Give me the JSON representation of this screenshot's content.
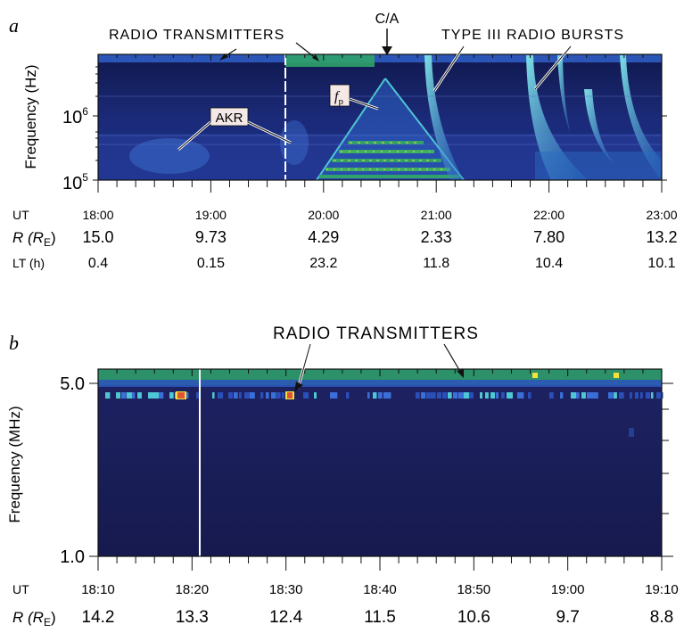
{
  "chart_data": [
    {
      "panel": "a",
      "type": "heatmap",
      "ylabel": "Frequency (Hz)",
      "yscale": "log",
      "ylim": [
        100000,
        5000000
      ],
      "yticks": [
        {
          "value": 100000,
          "base": "10",
          "exp": "5"
        },
        {
          "value": 1000000,
          "base": "10",
          "exp": "6"
        }
      ],
      "xlim": [
        "18:00",
        "23:00"
      ],
      "annotations": {
        "radio_transmitters": "RADIO TRANSMITTERS",
        "ca": "C/A",
        "type3": "TYPE  III  RADIO  BURSTS",
        "akr": "AKR",
        "fp_main": "f",
        "fp_sub": "p"
      },
      "rows": {
        "ut": {
          "label": "UT",
          "values": [
            "18:00",
            "19:00",
            "20:00",
            "21:00",
            "22:00",
            "23:00"
          ]
        },
        "r": {
          "label": "R (R",
          "label_sub": "E",
          "label_end": ")",
          "values": [
            "15.0",
            "9.73",
            "4.29",
            "2.33",
            "7.80",
            "13.2"
          ]
        },
        "lt": {
          "label": "LT (h)",
          "values": [
            "0.4",
            "0.15",
            "23.2",
            "11.8",
            "10.4",
            "10.1"
          ]
        }
      }
    },
    {
      "panel": "b",
      "type": "heatmap",
      "ylabel": "Frequency (MHz)",
      "ylim": [
        1.0,
        5.0
      ],
      "yticks": [
        "5.0",
        "1.0"
      ],
      "xlim": [
        "18:10",
        "19:10"
      ],
      "annotations": {
        "radio_transmitters": "RADIO TRANSMITTERS"
      },
      "rows": {
        "ut": {
          "label": "UT",
          "values": [
            "18:10",
            "18:20",
            "18:30",
            "18:40",
            "18:50",
            "19:00",
            "19:10"
          ]
        },
        "r": {
          "label": "R (R",
          "label_sub": "E",
          "label_end": ")",
          "values": [
            "14.2",
            "13.3",
            "12.4",
            "11.5",
            "10.6",
            "9.7",
            "8.8"
          ]
        }
      }
    }
  ],
  "colors": {
    "background_dark": "#1a1f5c",
    "band_green": "#2fa36a",
    "burst_cyan": "#37b7c8",
    "hot_yellow": "#f3e23a"
  }
}
